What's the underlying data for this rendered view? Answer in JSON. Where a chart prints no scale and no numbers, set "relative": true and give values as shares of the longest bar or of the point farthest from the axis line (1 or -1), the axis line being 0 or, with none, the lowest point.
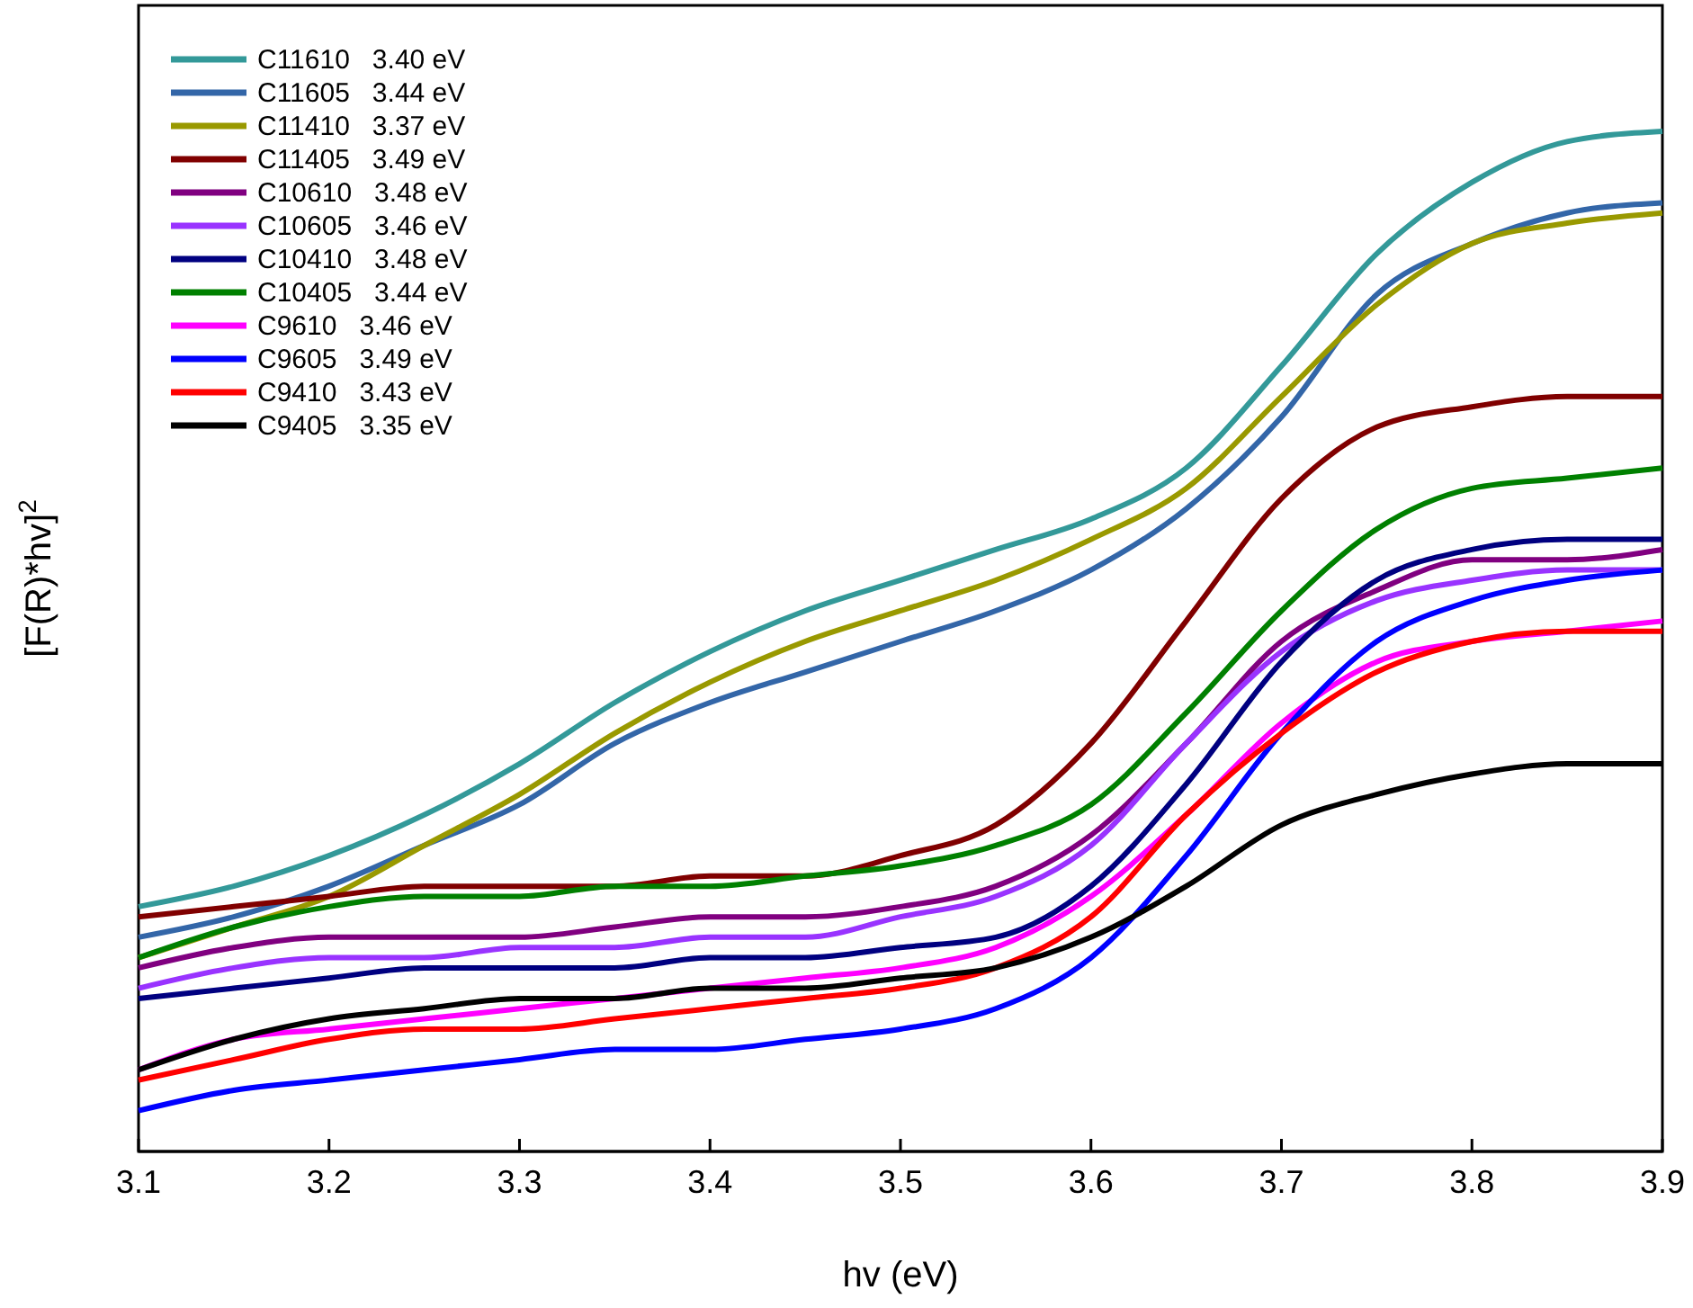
{
  "chart_data": {
    "type": "line",
    "xlabel": "hv (eV)",
    "ylabel": "[F(R)*hv]$^{2}$",
    "relative": true,
    "xlim": [
      3.1,
      3.9
    ],
    "xticks": [
      3.1,
      3.2,
      3.3,
      3.4,
      3.5,
      3.6,
      3.7,
      3.8,
      3.9
    ],
    "grid": false,
    "legend": "top left",
    "marker": "none",
    "line_style": "solid",
    "x": [
      3.1,
      3.15,
      3.2,
      3.25,
      3.3,
      3.35,
      3.4,
      3.45,
      3.5,
      3.55,
      3.6,
      3.65,
      3.7,
      3.75,
      3.8,
      3.85,
      3.9
    ],
    "series": [
      {
        "name": "C11610   3.40 eV",
        "color": "#339999",
        "values": [
          0.24,
          0.26,
          0.29,
          0.33,
          0.38,
          0.44,
          0.49,
          0.53,
          0.56,
          0.59,
          0.62,
          0.67,
          0.77,
          0.88,
          0.95,
          0.99,
          1
        ]
      },
      {
        "name": "C11605   3.44 eV",
        "color": "#3366a8",
        "values": [
          0.21,
          0.23,
          0.26,
          0.3,
          0.34,
          0.4,
          0.44,
          0.47,
          0.5,
          0.53,
          0.57,
          0.63,
          0.72,
          0.84,
          0.89,
          0.92,
          0.93
        ]
      },
      {
        "name": "C11410   3.37 eV",
        "color": "#999900",
        "values": [
          0.19,
          0.22,
          0.25,
          0.3,
          0.35,
          0.41,
          0.46,
          0.5,
          0.53,
          0.56,
          0.6,
          0.65,
          0.74,
          0.83,
          0.89,
          0.91,
          0.92
        ]
      },
      {
        "name": "C11405   3.49 eV",
        "color": "#800000",
        "values": [
          0.23,
          0.24,
          0.25,
          0.26,
          0.26,
          0.26,
          0.27,
          0.27,
          0.29,
          0.32,
          0.4,
          0.52,
          0.64,
          0.71,
          0.73,
          0.74,
          0.74
        ]
      },
      {
        "name": "C10610   3.48 eV",
        "color": "#800080",
        "values": [
          0.18,
          0.2,
          0.21,
          0.21,
          0.21,
          0.22,
          0.23,
          0.23,
          0.24,
          0.26,
          0.31,
          0.4,
          0.5,
          0.55,
          0.58,
          0.58,
          0.59
        ]
      },
      {
        "name": "C10605   3.46 eV",
        "color": "#9933ff",
        "values": [
          0.16,
          0.18,
          0.19,
          0.19,
          0.2,
          0.2,
          0.21,
          0.21,
          0.23,
          0.25,
          0.3,
          0.4,
          0.49,
          0.54,
          0.56,
          0.57,
          0.57
        ]
      },
      {
        "name": "C10410   3.48 eV",
        "color": "#000080",
        "values": [
          0.15,
          0.16,
          0.17,
          0.18,
          0.18,
          0.18,
          0.19,
          0.19,
          0.2,
          0.21,
          0.26,
          0.36,
          0.48,
          0.56,
          0.59,
          0.6,
          0.6
        ]
      },
      {
        "name": "C10405   3.44 eV",
        "color": "#008000",
        "values": [
          0.19,
          0.22,
          0.24,
          0.25,
          0.25,
          0.26,
          0.26,
          0.27,
          0.28,
          0.3,
          0.34,
          0.43,
          0.53,
          0.61,
          0.65,
          0.66,
          0.67
        ]
      },
      {
        "name": "C9610   3.46 eV",
        "color": "#ff00ff",
        "values": [
          0.08,
          0.11,
          0.12,
          0.13,
          0.14,
          0.15,
          0.16,
          0.17,
          0.18,
          0.2,
          0.25,
          0.33,
          0.42,
          0.48,
          0.5,
          0.51,
          0.52
        ]
      },
      {
        "name": "C9605   3.49 eV",
        "color": "#0000ff",
        "values": [
          0.04,
          0.06,
          0.07,
          0.08,
          0.09,
          0.1,
          0.1,
          0.11,
          0.12,
          0.14,
          0.19,
          0.29,
          0.41,
          0.5,
          0.54,
          0.56,
          0.57
        ]
      },
      {
        "name": "C9410   3.43 eV",
        "color": "#ff0000",
        "values": [
          0.07,
          0.09,
          0.11,
          0.12,
          0.12,
          0.13,
          0.14,
          0.15,
          0.16,
          0.18,
          0.23,
          0.33,
          0.41,
          0.47,
          0.5,
          0.51,
          0.51
        ]
      },
      {
        "name": "C9405   3.35 eV",
        "color": "#000000",
        "values": [
          0.08,
          0.11,
          0.13,
          0.14,
          0.15,
          0.15,
          0.16,
          0.16,
          0.17,
          0.18,
          0.21,
          0.26,
          0.32,
          0.35,
          0.37,
          0.38,
          0.38
        ]
      }
    ]
  }
}
